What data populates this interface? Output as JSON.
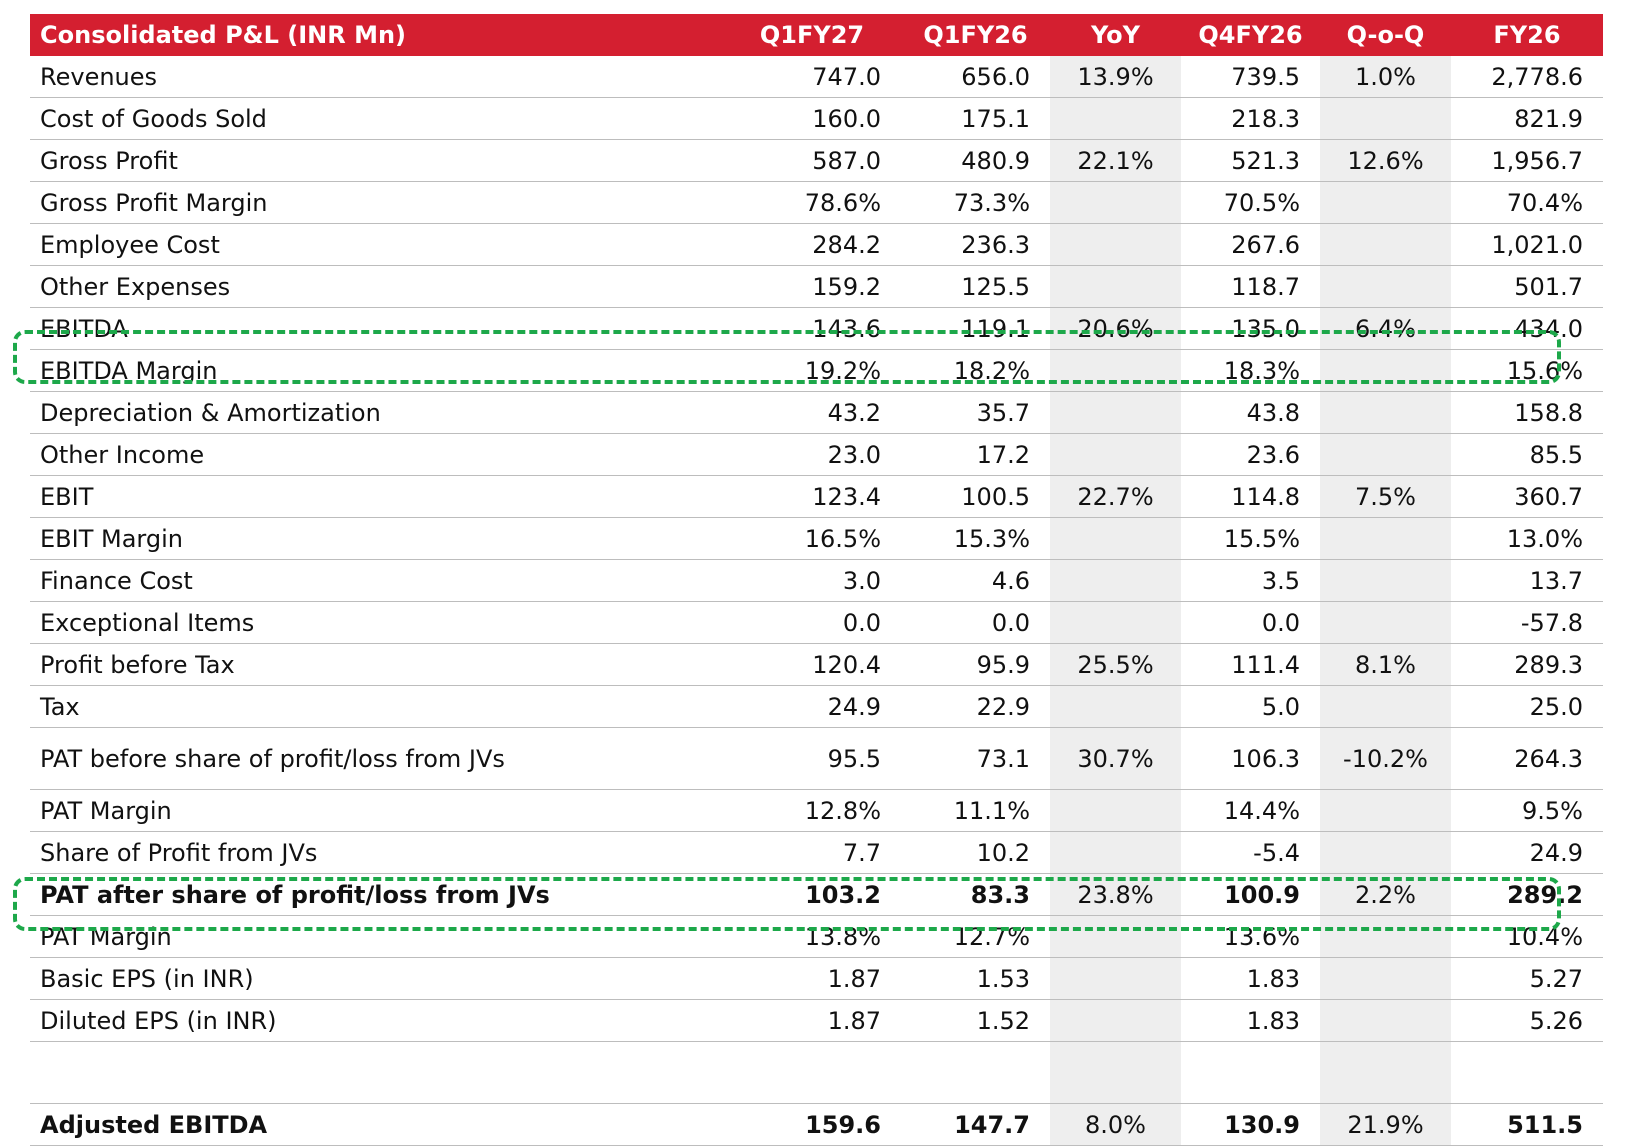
{
  "table": {
    "headers": [
      "Consolidated P&L (INR Mn)",
      "Q1FY27",
      "Q1FY26",
      "YoY",
      "Q4FY26",
      "Q-o-Q",
      "FY26"
    ],
    "rows": [
      {
        "label": "Revenues",
        "q1fy27": "747.0",
        "q1fy26": "656.0",
        "yoy": "13.9%",
        "q4fy26": "739.5",
        "qoq": "1.0%",
        "fy26": "2,778.6"
      },
      {
        "label": "Cost of Goods Sold",
        "q1fy27": "160.0",
        "q1fy26": "175.1",
        "yoy": "",
        "q4fy26": "218.3",
        "qoq": "",
        "fy26": "821.9"
      },
      {
        "label": "Gross Profit",
        "q1fy27": "587.0",
        "q1fy26": "480.9",
        "yoy": "22.1%",
        "q4fy26": "521.3",
        "qoq": "12.6%",
        "fy26": "1,956.7"
      },
      {
        "label": "Gross Profit Margin",
        "q1fy27": "78.6%",
        "q1fy26": "73.3%",
        "yoy": "",
        "q4fy26": "70.5%",
        "qoq": "",
        "fy26": "70.4%"
      },
      {
        "label": "Employee Cost",
        "q1fy27": "284.2",
        "q1fy26": "236.3",
        "yoy": "",
        "q4fy26": "267.6",
        "qoq": "",
        "fy26": "1,021.0"
      },
      {
        "label": "Other Expenses",
        "q1fy27": "159.2",
        "q1fy26": "125.5",
        "yoy": "",
        "q4fy26": "118.7",
        "qoq": "",
        "fy26": "501.7"
      },
      {
        "label": "EBITDA",
        "q1fy27": "143.6",
        "q1fy26": "119.1",
        "yoy": "20.6%",
        "q4fy26": "135.0",
        "qoq": "6.4%",
        "fy26": "434.0"
      },
      {
        "label": "EBITDA Margin",
        "q1fy27": "19.2%",
        "q1fy26": "18.2%",
        "yoy": "",
        "q4fy26": "18.3%",
        "qoq": "",
        "fy26": "15.6%"
      },
      {
        "label": "Depreciation & Amortization",
        "q1fy27": "43.2",
        "q1fy26": "35.7",
        "yoy": "",
        "q4fy26": "43.8",
        "qoq": "",
        "fy26": "158.8"
      },
      {
        "label": "Other Income",
        "q1fy27": "23.0",
        "q1fy26": "17.2",
        "yoy": "",
        "q4fy26": "23.6",
        "qoq": "",
        "fy26": "85.5"
      },
      {
        "label": "EBIT",
        "q1fy27": "123.4",
        "q1fy26": "100.5",
        "yoy": "22.7%",
        "q4fy26": "114.8",
        "qoq": "7.5%",
        "fy26": "360.7"
      },
      {
        "label": "EBIT Margin",
        "q1fy27": "16.5%",
        "q1fy26": "15.3%",
        "yoy": "",
        "q4fy26": "15.5%",
        "qoq": "",
        "fy26": "13.0%"
      },
      {
        "label": "Finance Cost",
        "q1fy27": "3.0",
        "q1fy26": "4.6",
        "yoy": "",
        "q4fy26": "3.5",
        "qoq": "",
        "fy26": "13.7"
      },
      {
        "label": "Exceptional Items",
        "q1fy27": "0.0",
        "q1fy26": "0.0",
        "yoy": "",
        "q4fy26": "0.0",
        "qoq": "",
        "fy26": "-57.8"
      },
      {
        "label": "Profit before Tax",
        "q1fy27": "120.4",
        "q1fy26": "95.9",
        "yoy": "25.5%",
        "q4fy26": "111.4",
        "qoq": "8.1%",
        "fy26": "289.3"
      },
      {
        "label": "Tax",
        "q1fy27": "24.9",
        "q1fy26": "22.9",
        "yoy": "",
        "q4fy26": "5.0",
        "qoq": "",
        "fy26": "25.0"
      },
      {
        "label": "PAT before share of profit/loss from JVs",
        "q1fy27": "95.5",
        "q1fy26": "73.1",
        "yoy": "30.7%",
        "q4fy26": "106.3",
        "qoq": "-10.2%",
        "fy26": "264.3"
      },
      {
        "label": "PAT Margin",
        "q1fy27": "12.8%",
        "q1fy26": "11.1%",
        "yoy": "",
        "q4fy26": "14.4%",
        "qoq": "",
        "fy26": "9.5%"
      },
      {
        "label": "Share of Profit from JVs",
        "q1fy27": "7.7",
        "q1fy26": "10.2",
        "yoy": "",
        "q4fy26": "-5.4",
        "qoq": "",
        "fy26": "24.9"
      },
      {
        "label": "PAT after share of profit/loss from JVs",
        "q1fy27": "103.2",
        "q1fy26": "83.3",
        "yoy": "23.8%",
        "q4fy26": "100.9",
        "qoq": "2.2%",
        "fy26": "289.2"
      },
      {
        "label": "PAT Margin",
        "q1fy27": "13.8%",
        "q1fy26": "12.7%",
        "yoy": "",
        "q4fy26": "13.6%",
        "qoq": "",
        "fy26": "10.4%"
      },
      {
        "label": "Basic EPS (in INR)",
        "q1fy27": "1.87",
        "q1fy26": "1.53",
        "yoy": "",
        "q4fy26": "1.83",
        "qoq": "",
        "fy26": "5.27"
      },
      {
        "label": "Diluted EPS (in INR)",
        "q1fy27": "1.87",
        "q1fy26": "1.52",
        "yoy": "",
        "q4fy26": "1.83",
        "qoq": "",
        "fy26": "5.26"
      },
      {
        "label": "",
        "q1fy27": "",
        "q1fy26": "",
        "yoy": "",
        "q4fy26": "",
        "qoq": "",
        "fy26": ""
      },
      {
        "label": "Adjusted EBITDA",
        "q1fy27": "159.6",
        "q1fy26": "147.7",
        "yoy": "8.0%",
        "q4fy26": "130.9",
        "qoq": "21.9%",
        "fy26": "511.5"
      }
    ]
  },
  "colors": {
    "header_background": "#d41f30",
    "header_text": "#ffffff",
    "shaded_column": "#eeeeee",
    "highlight_dashes": "#1da84a"
  }
}
